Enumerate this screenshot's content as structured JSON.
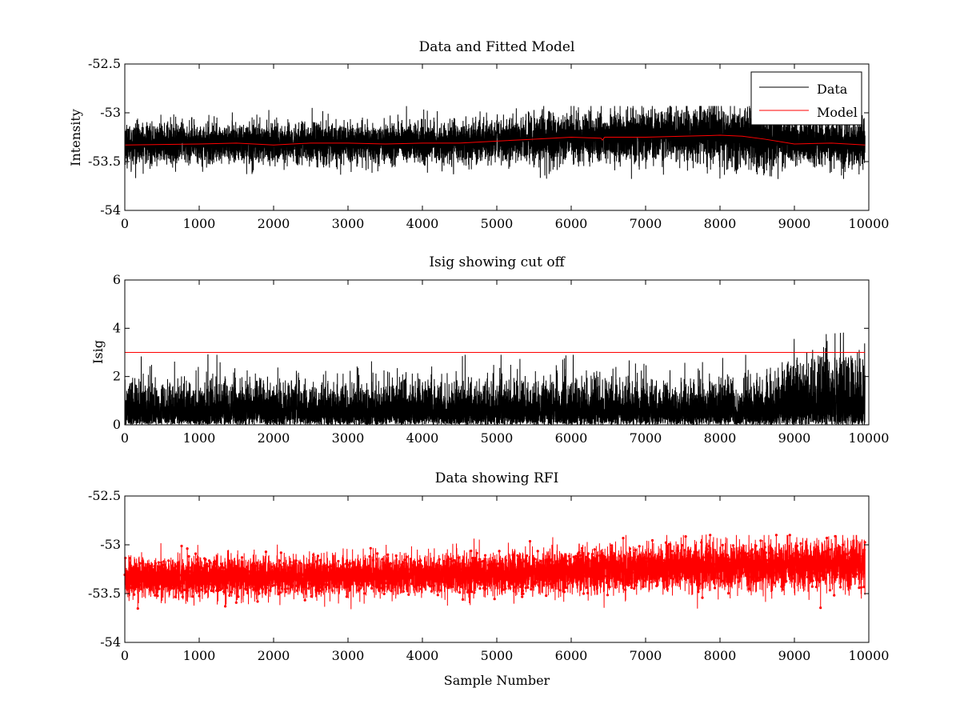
{
  "chart_data": [
    {
      "type": "line",
      "title": "Data and Fitted Model",
      "xlabel": "",
      "ylabel": "Intensity",
      "xlim": [
        0,
        10000
      ],
      "ylim": [
        -54,
        -52.5
      ],
      "xticks": [
        0,
        1000,
        2000,
        3000,
        4000,
        5000,
        6000,
        7000,
        8000,
        9000,
        10000
      ],
      "xtick_labels": [
        "0",
        "1000",
        "2000",
        "3000",
        "4000",
        "5000",
        "6000",
        "7000",
        "8000",
        "9000",
        "10000"
      ],
      "yticks": [
        -54,
        -53.5,
        -53,
        -52.5
      ],
      "ytick_labels": [
        "-54",
        "-53.5",
        "-53",
        "-52.5"
      ],
      "legend": {
        "placement": "top-right",
        "entries": [
          "Data",
          "Model"
        ]
      },
      "series": [
        {
          "name": "Data",
          "color": "#000000",
          "style": "noise",
          "n_samples": 9950,
          "baseline_x": [
            0,
            2000,
            4000,
            5000,
            6000,
            7000,
            8000,
            8500,
            9000,
            9950
          ],
          "baseline_y": [
            -53.32,
            -53.31,
            -53.31,
            -53.29,
            -53.25,
            -53.24,
            -53.22,
            -53.25,
            -53.3,
            -53.32
          ],
          "noise_amplitude": [
            0.1,
            0.1,
            0.1,
            0.11,
            0.12,
            0.13,
            0.14,
            0.16,
            0.12,
            0.12
          ],
          "range": [
            -53.68,
            -52.93
          ]
        },
        {
          "name": "Model",
          "color": "#ff0000",
          "x": [
            0,
            1000,
            1500,
            2000,
            2500,
            3000,
            3500,
            4000,
            4500,
            5000,
            5500,
            6000,
            6400,
            6420,
            6450,
            7000,
            7500,
            8000,
            8300,
            8600,
            9000,
            9500,
            9950
          ],
          "y": [
            -53.33,
            -53.32,
            -53.31,
            -53.33,
            -53.31,
            -53.31,
            -53.32,
            -53.31,
            -53.31,
            -53.29,
            -53.27,
            -53.25,
            -53.26,
            -53.28,
            -53.25,
            -53.25,
            -53.24,
            -53.23,
            -53.24,
            -53.27,
            -53.32,
            -53.31,
            -53.33
          ]
        }
      ]
    },
    {
      "type": "line",
      "title": "Isig showing cut off",
      "xlabel": "",
      "ylabel": "Isig",
      "xlim": [
        0,
        10000
      ],
      "ylim": [
        0,
        6
      ],
      "xticks": [
        0,
        1000,
        2000,
        3000,
        4000,
        5000,
        6000,
        7000,
        8000,
        9000,
        10000
      ],
      "xtick_labels": [
        "0",
        "1000",
        "2000",
        "3000",
        "4000",
        "5000",
        "6000",
        "7000",
        "8000",
        "9000",
        "10000"
      ],
      "yticks": [
        0,
        2,
        4,
        6
      ],
      "ytick_labels": [
        "0",
        "2",
        "4",
        "6"
      ],
      "series": [
        {
          "color": "#000000",
          "style": "abs-noise",
          "n_samples": 9950,
          "baseline_x": [
            0,
            8700,
            8850,
            9950
          ],
          "baseline_y": [
            0.8,
            0.8,
            1.2,
            1.3
          ],
          "peak_max": [
            2.9,
            2.9,
            3.6,
            3.9
          ],
          "range": [
            0,
            3.9
          ]
        },
        {
          "color": "#ff0000",
          "x": [
            0,
            9950
          ],
          "y": [
            3,
            3
          ]
        }
      ]
    },
    {
      "type": "line",
      "title": "Data showing RFI",
      "xlabel": "Sample Number",
      "ylabel": "",
      "xlim": [
        0,
        10000
      ],
      "ylim": [
        -54,
        -52.5
      ],
      "xticks": [
        0,
        1000,
        2000,
        3000,
        4000,
        5000,
        6000,
        7000,
        8000,
        9000,
        10000
      ],
      "xtick_labels": [
        "0",
        "1000",
        "2000",
        "3000",
        "4000",
        "5000",
        "6000",
        "7000",
        "8000",
        "9000",
        "10000"
      ],
      "yticks": [
        -54,
        -53.5,
        -53,
        -52.5
      ],
      "ytick_labels": [
        "-54",
        "-53.5",
        "-53",
        "-52.5"
      ],
      "series": [
        {
          "color": "#ff0000",
          "marker": "dot",
          "style": "noise",
          "n_samples": 9950,
          "baseline_x": [
            0,
            2000,
            4000,
            6000,
            8000,
            9950
          ],
          "baseline_y": [
            -53.33,
            -53.33,
            -53.31,
            -53.27,
            -53.22,
            -53.2
          ],
          "noise_amplitude": [
            0.1,
            0.1,
            0.1,
            0.11,
            0.12,
            0.12
          ],
          "range": [
            -53.68,
            -52.9
          ]
        }
      ]
    }
  ]
}
